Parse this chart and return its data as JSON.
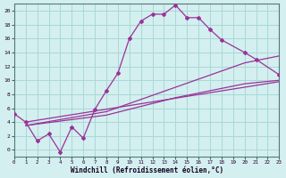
{
  "xlabel": "Windchill (Refroidissement éolien,°C)",
  "xlim": [
    0,
    23
  ],
  "ylim": [
    -1,
    21
  ],
  "xticks": [
    0,
    1,
    2,
    3,
    4,
    5,
    6,
    7,
    8,
    9,
    10,
    11,
    12,
    13,
    14,
    15,
    16,
    17,
    18,
    19,
    20,
    21,
    22,
    23
  ],
  "yticks": [
    0,
    2,
    4,
    6,
    8,
    10,
    12,
    14,
    16,
    18,
    20
  ],
  "background_color": "#d4efef",
  "line_color": "#993399",
  "grid_color": "#a8d8d8",
  "series1_x": [
    0,
    1,
    2,
    3,
    4,
    5,
    6,
    7,
    8,
    9,
    10,
    11,
    12,
    13,
    14,
    15,
    16,
    17,
    18,
    20,
    21,
    23
  ],
  "series1_y": [
    5.2,
    4.0,
    1.3,
    2.3,
    -0.3,
    3.3,
    1.7,
    5.8,
    8.5,
    11.0,
    16.0,
    18.5,
    19.5,
    19.5,
    20.8,
    19.0,
    19.0,
    17.3,
    15.8,
    14.0,
    13.0,
    10.8
  ],
  "series2_x": [
    1,
    23
  ],
  "series2_y": [
    4.0,
    9.8
  ],
  "series3_x": [
    1,
    8,
    14,
    20,
    23
  ],
  "series3_y": [
    3.5,
    5.5,
    9.0,
    12.5,
    13.5
  ],
  "series4_x": [
    1,
    8,
    14,
    20,
    23
  ],
  "series4_y": [
    3.5,
    5.0,
    7.5,
    9.5,
    10.0
  ]
}
